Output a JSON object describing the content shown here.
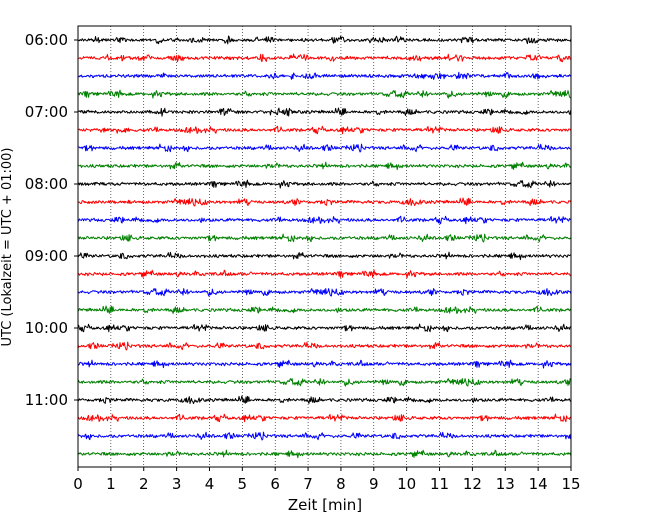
{
  "chart_data": {
    "type": "line",
    "subtype": "helicorder",
    "xlabel": "Zeit  [min]",
    "ylabel": "UTC (Lokalzeit = UTC + 01:00)",
    "xlim": [
      0,
      15
    ],
    "x_ticks": [
      "0",
      "1",
      "2",
      "3",
      "4",
      "5",
      "6",
      "7",
      "8",
      "9",
      "10",
      "11",
      "12",
      "13",
      "14",
      "15"
    ],
    "y_tick_labels": [
      "06:00",
      "07:00",
      "08:00",
      "09:00",
      "10:00",
      "11:00"
    ],
    "trace_start_times": [
      "06:00",
      "06:15",
      "06:30",
      "06:45",
      "07:00",
      "07:15",
      "07:30",
      "07:45",
      "08:00",
      "08:15",
      "08:30",
      "08:45",
      "09:00",
      "09:15",
      "09:30",
      "09:45",
      "10:00",
      "10:15",
      "10:30",
      "10:45",
      "11:00",
      "11:15",
      "11:30",
      "11:45"
    ],
    "trace_colors_cycle": [
      "#000000",
      "#ff0000",
      "#0000ff",
      "#008000"
    ],
    "vertical_grid": "dotted",
    "legend": "none"
  }
}
